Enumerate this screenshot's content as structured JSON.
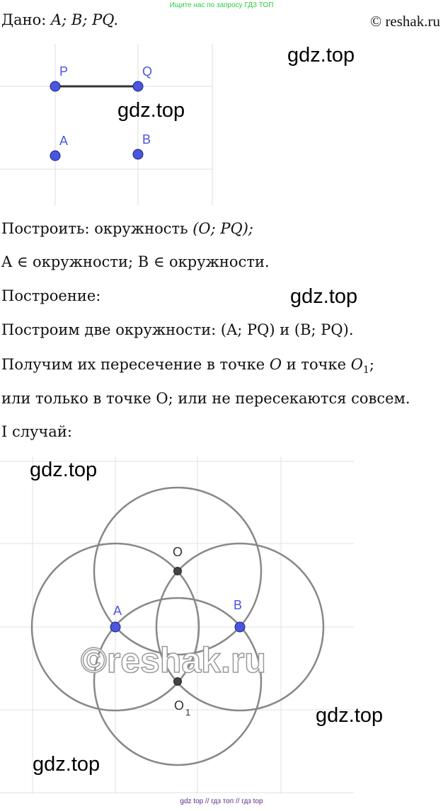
{
  "header": {
    "banner": "Ищите нас по запросу ГДЗ ТОП",
    "copyright": "© reshak.ru"
  },
  "given": {
    "prefix": "Дано: ",
    "math": "A; B; PQ."
  },
  "figure1": {
    "labels": {
      "P": "P",
      "Q": "Q",
      "A": "A",
      "B": "B"
    },
    "point_color": "#4a55e0"
  },
  "text": {
    "construct_prefix": "Построить: окружность ",
    "construct_math": "(O; PQ);",
    "belongs_line": "A ∈ окружности;   B ∈ окружности.",
    "construction": "Построение:",
    "step1": "Построим две окружности: (A; PQ) и (B; PQ).",
    "step2_prefix": "Получим их пересечение в точке ",
    "step2_o": "O",
    "step2_mid": " и точке ",
    "step2_o1": "O",
    "step2_sub": "1",
    "step2_end": ";",
    "step3": "или только в точке O; или не пересекаются совсем.",
    "case1": "I случай:"
  },
  "figure2": {
    "labels": {
      "A": "A",
      "B": "B",
      "O": "O",
      "O1": "O",
      "O1_sub": "1"
    },
    "watermark": "©reshak.ru"
  },
  "watermarks": [
    "gdz.top",
    "gdz.top",
    "gdz.top",
    "gdz.top",
    "gdz.top",
    "gdz.top"
  ],
  "footer": {
    "banner": "gdz top  //  гдз топ  //  гдз top"
  }
}
